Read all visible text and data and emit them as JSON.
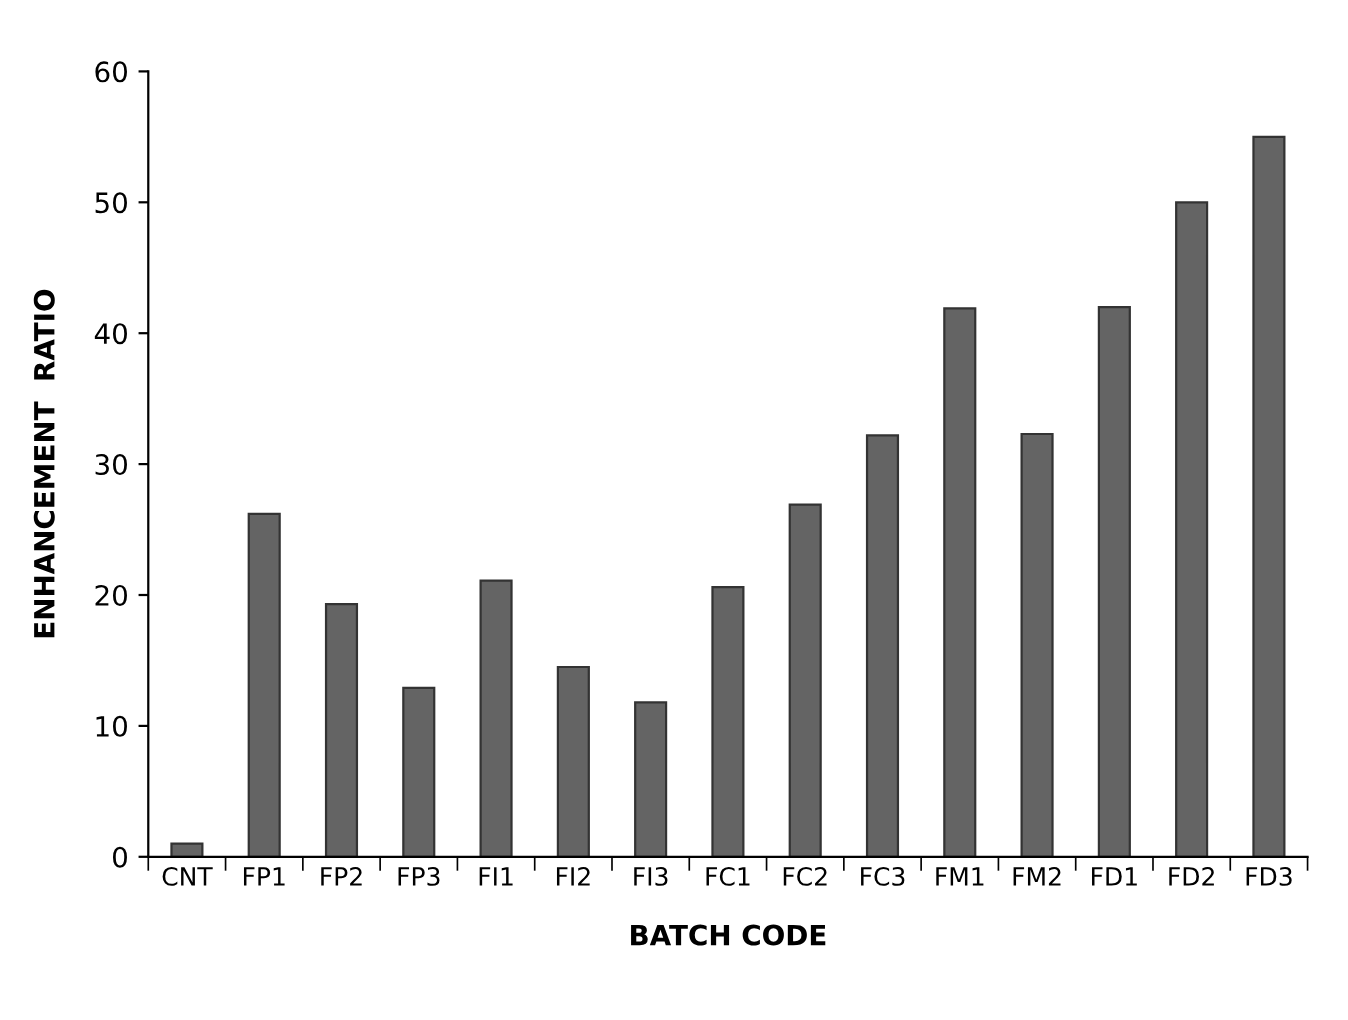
{
  "chart_data": {
    "type": "bar",
    "xlabel": "BATCH CODE",
    "ylabel": "ENHANCEMENT  RATIO",
    "categories": [
      "CNT",
      "FP1",
      "FP2",
      "FP3",
      "FI1",
      "FI2",
      "FI3",
      "FC1",
      "FC2",
      "FC3",
      "FM1",
      "FM2",
      "FD1",
      "FD2",
      "FD3"
    ],
    "values": [
      1,
      26.2,
      19.3,
      12.9,
      21.1,
      14.5,
      11.8,
      20.6,
      26.9,
      32.2,
      41.9,
      32.3,
      42,
      50,
      55
    ],
    "color": "#646464",
    "ylim": [
      0,
      60
    ],
    "yticks": [
      0,
      10,
      20,
      30,
      40,
      50,
      60
    ],
    "grid": false
  }
}
